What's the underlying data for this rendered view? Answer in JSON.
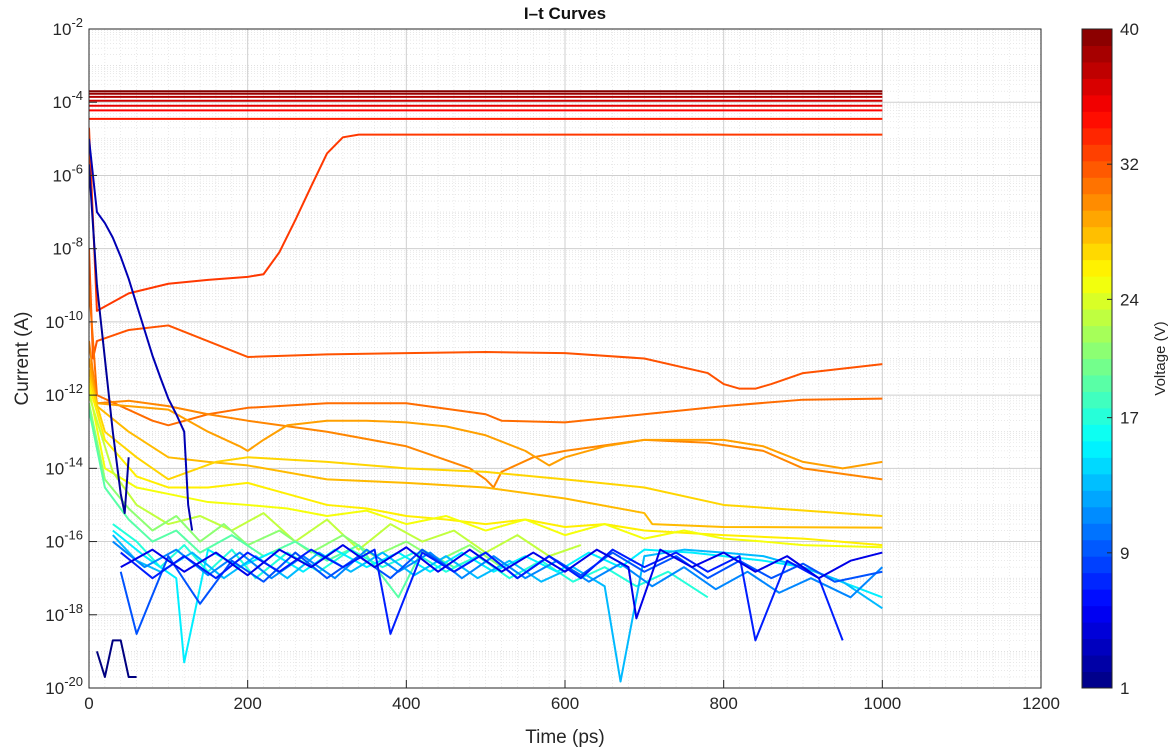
{
  "chart_data": {
    "type": "line",
    "title": "I–t Curves",
    "xlabel": "Time (ps)",
    "ylabel": "Current (A)",
    "xlim": [
      0,
      1200
    ],
    "ylim": [
      1e-20,
      0.01
    ],
    "yscale": "log",
    "grid": true,
    "minor_grid": true,
    "x_ticks": [
      0,
      200,
      400,
      600,
      800,
      1000,
      1200
    ],
    "y_tick_exponents": [
      -20,
      -18,
      -16,
      -14,
      -12,
      -10,
      -8,
      -6,
      -4,
      -2
    ],
    "colorbar": {
      "label": "Voltage (V)",
      "colormap": "jet",
      "range": [
        1,
        40
      ],
      "ticks": [
        "1",
        "9",
        "17",
        "24",
        "32",
        "40"
      ]
    },
    "series_note_voltages": [
      40,
      39,
      38,
      37,
      36,
      35,
      34,
      33,
      32,
      31,
      30,
      29,
      28,
      27,
      26,
      25,
      24,
      23,
      22,
      21,
      20,
      19,
      18,
      17,
      16,
      15,
      14,
      13,
      12,
      11,
      10,
      9,
      8,
      7,
      6,
      5,
      4,
      3,
      2,
      1
    ],
    "series": [
      {
        "voltage": 40,
        "x": [
          0,
          1000
        ],
        "y": [
          0.0002,
          0.0002
        ]
      },
      {
        "voltage": 39,
        "x": [
          0,
          1000
        ],
        "y": [
          0.00017,
          0.00017
        ]
      },
      {
        "voltage": 38,
        "x": [
          0,
          1000
        ],
        "y": [
          0.00014,
          0.00014
        ]
      },
      {
        "voltage": 37,
        "x": [
          0,
          1000
        ],
        "y": [
          0.00011,
          0.00011
        ]
      },
      {
        "voltage": 36,
        "x": [
          0,
          1000
        ],
        "y": [
          8e-05,
          8e-05
        ]
      },
      {
        "voltage": 35,
        "x": [
          0,
          1000
        ],
        "y": [
          6e-05,
          6e-05
        ]
      },
      {
        "voltage": 34,
        "x": [
          0,
          1000
        ],
        "y": [
          3.5e-05,
          3.5e-05
        ]
      },
      {
        "voltage": 33,
        "x": [
          0,
          10,
          50,
          100,
          150,
          200,
          220,
          240,
          260,
          280,
          300,
          320,
          340,
          400,
          600,
          1000
        ],
        "y": [
          2e-05,
          2e-10,
          6e-10,
          1.1e-09,
          1.4e-09,
          1.7e-09,
          2e-09,
          8e-09,
          6e-08,
          5e-07,
          4e-06,
          1.1e-05,
          1.3e-05,
          1.3e-05,
          1.3e-05,
          1.3e-05
        ]
      },
      {
        "voltage": 32,
        "x": [
          0,
          5,
          10,
          50,
          100,
          200,
          300,
          400,
          500,
          600,
          700,
          780,
          800,
          820,
          840,
          860,
          900,
          1000
        ],
        "y": [
          1e-08,
          1e-11,
          3e-11,
          6e-11,
          8e-11,
          1.1e-11,
          1.3e-11,
          1.4e-11,
          1.5e-11,
          1.4e-11,
          1e-11,
          4e-12,
          2e-12,
          1.5e-12,
          1.5e-12,
          2e-12,
          4e-12,
          7e-12
        ]
      },
      {
        "voltage": 31,
        "x": [
          0,
          10,
          40,
          80,
          100,
          150,
          200,
          300,
          400,
          500,
          520,
          600,
          700,
          800,
          900,
          1000
        ],
        "y": [
          1e-09,
          1e-12,
          5e-13,
          2e-13,
          1.5e-13,
          3e-13,
          4.5e-13,
          6e-13,
          6e-13,
          3e-13,
          2e-13,
          1.8e-13,
          3e-13,
          5e-13,
          7.5e-13,
          8e-13
        ]
      },
      {
        "voltage": 30,
        "x": [
          0,
          10,
          50,
          100,
          150,
          200,
          300,
          400,
          480,
          500,
          510,
          520,
          560,
          600,
          700,
          780,
          850,
          900,
          1000
        ],
        "y": [
          3e-11,
          6e-13,
          7e-13,
          5e-13,
          3e-13,
          2e-13,
          1e-13,
          4e-14,
          1e-14,
          5e-15,
          3e-15,
          8e-15,
          2e-14,
          3e-14,
          6e-14,
          5e-14,
          3e-14,
          1e-14,
          5e-15
        ]
      },
      {
        "voltage": 29,
        "x": [
          0,
          10,
          50,
          100,
          150,
          190,
          200,
          220,
          250,
          300,
          350,
          400,
          450,
          500,
          550,
          580,
          600,
          650,
          700,
          800,
          850,
          900,
          950,
          1000
        ],
        "y": [
          1e-11,
          6e-13,
          5e-13,
          4e-13,
          1e-13,
          4e-14,
          3e-14,
          6e-14,
          1.5e-13,
          2e-13,
          2e-13,
          1.8e-13,
          1.4e-13,
          8e-14,
          3e-14,
          1.2e-14,
          2e-14,
          4e-14,
          6e-14,
          6e-14,
          4e-14,
          1.5e-14,
          1e-14,
          1.5e-14
        ]
      },
      {
        "voltage": 28,
        "x": [
          0,
          10,
          50,
          100,
          150,
          200,
          300,
          400,
          500,
          600,
          700,
          710,
          800,
          1000
        ],
        "y": [
          5e-12,
          5e-13,
          1e-13,
          2e-14,
          1.5e-14,
          1.2e-14,
          5e-15,
          4e-15,
          3e-15,
          1.5e-15,
          6e-16,
          3e-16,
          2.5e-16,
          2.4e-16
        ]
      },
      {
        "voltage": 27,
        "x": [
          0,
          20,
          60,
          100,
          160,
          200,
          300,
          400,
          500,
          600,
          700,
          800,
          1000
        ],
        "y": [
          3e-12,
          1e-13,
          2e-14,
          5e-15,
          1.5e-14,
          2e-14,
          1.5e-14,
          1e-14,
          8e-15,
          5e-15,
          3e-15,
          1e-15,
          5e-16
        ]
      },
      {
        "voltage": 26,
        "x": [
          0,
          20,
          60,
          100,
          150,
          200,
          250,
          300,
          350,
          400,
          450,
          500,
          550,
          600,
          650,
          700,
          800,
          900,
          1000
        ],
        "y": [
          2e-12,
          6e-14,
          6e-15,
          3e-15,
          3e-15,
          4e-15,
          2e-15,
          1e-15,
          8e-16,
          5e-16,
          4e-16,
          3e-16,
          4e-16,
          2.5e-16,
          3e-16,
          2e-16,
          1.5e-16,
          1.2e-16,
          8e-17
        ]
      },
      {
        "voltage": 25,
        "x": [
          0,
          20,
          60,
          100,
          150,
          200,
          250,
          300,
          350,
          400,
          450,
          500,
          550,
          600,
          650,
          700,
          750,
          800,
          850,
          900,
          1000
        ],
        "y": [
          1.5e-12,
          1e-14,
          3e-15,
          2e-15,
          1.2e-15,
          1e-15,
          8e-16,
          5e-16,
          7e-16,
          3e-16,
          5e-16,
          2e-16,
          4e-16,
          1.5e-16,
          3e-16,
          1.2e-16,
          2e-16,
          1.2e-16,
          1e-16,
          8e-17,
          7e-17
        ]
      },
      {
        "voltage": 23,
        "x": [
          0,
          30,
          60,
          100,
          140,
          180,
          220,
          260,
          300,
          340,
          380,
          420,
          460,
          500,
          540,
          580,
          620
        ],
        "y": [
          1e-12,
          8e-15,
          1e-15,
          3e-16,
          5e-16,
          2e-16,
          6e-16,
          1e-16,
          4e-16,
          6e-17,
          3e-16,
          1e-16,
          2e-16,
          5e-17,
          1.5e-16,
          4e-17,
          8e-17
        ]
      },
      {
        "voltage": 21,
        "x": [
          0,
          20,
          50,
          80,
          110,
          140,
          170,
          200,
          240,
          280,
          320,
          360,
          400,
          440,
          480,
          520
        ],
        "y": [
          6e-13,
          5e-15,
          8e-16,
          2e-16,
          5e-16,
          1e-16,
          3e-16,
          8e-17,
          2e-16,
          5e-17,
          1.5e-16,
          4e-17,
          1e-16,
          3e-17,
          8e-17,
          2e-17
        ]
      },
      {
        "voltage": 19,
        "x": [
          0,
          20,
          50,
          80,
          110,
          140,
          180,
          220,
          260,
          300,
          340,
          390,
          420,
          460,
          500
        ],
        "y": [
          4e-13,
          3e-15,
          4e-16,
          1e-16,
          2e-16,
          5e-17,
          1.5e-16,
          4e-17,
          1e-16,
          3e-17,
          8e-17,
          3e-18,
          6e-17,
          2e-17,
          5e-17
        ]
      },
      {
        "voltage": 17,
        "x": [
          30,
          60,
          90,
          120,
          150,
          180,
          210,
          250,
          290,
          330,
          370,
          410,
          450,
          490,
          530,
          570,
          610,
          650,
          690,
          730,
          780
        ],
        "y": [
          3e-16,
          1e-16,
          2e-17,
          8e-17,
          1.5e-17,
          6e-17,
          1e-17,
          5e-17,
          1.5e-17,
          6e-17,
          2e-17,
          5e-17,
          1.5e-17,
          4e-17,
          1e-17,
          3e-17,
          8e-18,
          2e-17,
          6e-18,
          1.5e-17,
          3e-18
        ]
      },
      {
        "voltage": 15,
        "x": [
          30,
          70,
          110,
          120,
          150,
          190,
          230,
          270,
          310,
          350,
          390,
          430,
          470,
          510,
          550,
          590,
          630,
          670,
          700,
          760,
          800,
          850,
          900,
          1000
        ],
        "y": [
          2e-16,
          4e-17,
          1e-17,
          5e-20,
          6e-17,
          2e-17,
          5e-17,
          1.5e-17,
          6e-17,
          2e-17,
          5e-17,
          1.5e-17,
          5e-17,
          1.5e-17,
          4e-17,
          1.5e-17,
          5e-17,
          2e-17,
          6e-17,
          5e-17,
          4e-17,
          3e-17,
          2e-17,
          3e-18
        ]
      },
      {
        "voltage": 13,
        "x": [
          30,
          60,
          90,
          130,
          170,
          210,
          250,
          290,
          330,
          370,
          410,
          450,
          490,
          530,
          570,
          610,
          650,
          670,
          700,
          750,
          800,
          850,
          900,
          950,
          1000
        ],
        "y": [
          1.5e-16,
          3e-17,
          1.5e-17,
          5e-17,
          1e-17,
          4e-17,
          1e-17,
          5e-17,
          1.5e-17,
          5e-17,
          1.2e-17,
          4e-17,
          1e-17,
          3e-17,
          8e-18,
          2e-17,
          6e-18,
          1.5e-20,
          4e-17,
          6e-17,
          5e-17,
          4e-17,
          2e-17,
          8e-18,
          1.5e-18
        ]
      },
      {
        "voltage": 11,
        "x": [
          30,
          70,
          110,
          150,
          190,
          230,
          270,
          310,
          350,
          390,
          430,
          470,
          510,
          550,
          590,
          630,
          670,
          710,
          750,
          790,
          830,
          870,
          910,
          960,
          1000
        ],
        "y": [
          1e-16,
          2e-17,
          6e-17,
          1.2e-17,
          5e-17,
          1e-17,
          4e-17,
          1e-17,
          6e-17,
          1.5e-17,
          5e-17,
          1e-17,
          4e-17,
          1e-17,
          3e-17,
          8e-18,
          2.5e-17,
          6e-18,
          2e-17,
          5e-18,
          1.5e-17,
          4e-18,
          1e-17,
          3e-18,
          2e-17
        ]
      },
      {
        "voltage": 9,
        "x": [
          40,
          60,
          100,
          140,
          180,
          220,
          260,
          300,
          340,
          380,
          420,
          460,
          500,
          540,
          580,
          620,
          660,
          700,
          740,
          780,
          820,
          860,
          900,
          940,
          1000
        ],
        "y": [
          1.5e-17,
          3e-19,
          4e-17,
          2e-18,
          3e-17,
          8e-18,
          5e-17,
          1e-17,
          4e-17,
          1e-17,
          6e-17,
          1.5e-17,
          5e-17,
          1e-17,
          4e-17,
          1.2e-17,
          5e-17,
          1.5e-17,
          4e-17,
          1e-17,
          3e-17,
          1e-17,
          2.5e-17,
          8e-18,
          1.5e-17
        ]
      },
      {
        "voltage": 7,
        "x": [
          40,
          80,
          120,
          160,
          200,
          240,
          280,
          320,
          360,
          380,
          420,
          460,
          500,
          540,
          580,
          620,
          660,
          700,
          740,
          780,
          820,
          840,
          880,
          920,
          950
        ],
        "y": [
          5e-17,
          1e-17,
          4e-17,
          1e-17,
          5e-17,
          1.5e-17,
          6e-17,
          2e-17,
          6e-17,
          3e-19,
          5e-17,
          1.5e-17,
          5e-17,
          1e-17,
          4e-17,
          1e-17,
          6e-17,
          2e-17,
          5e-17,
          1.5e-17,
          4e-17,
          2e-19,
          3e-17,
          1e-17,
          2e-19
        ]
      },
      {
        "voltage": 5,
        "x": [
          40,
          80,
          120,
          160,
          200,
          240,
          280,
          320,
          360,
          400,
          440,
          480,
          520,
          560,
          600,
          640,
          680,
          690,
          720,
          760,
          800,
          840,
          880,
          920,
          960,
          1000
        ],
        "y": [
          2e-17,
          6e-17,
          1.5e-17,
          5e-17,
          1.2e-17,
          6e-17,
          2e-17,
          8e-17,
          2e-17,
          7e-17,
          1.5e-17,
          6e-17,
          1.5e-17,
          5e-17,
          1.5e-17,
          6e-17,
          2e-17,
          8e-19,
          6e-17,
          2e-17,
          5e-17,
          1.5e-17,
          4e-17,
          1e-17,
          3e-17,
          5e-17
        ]
      },
      {
        "voltage": 3,
        "x": [
          0,
          5,
          10,
          20,
          30,
          40,
          50,
          60,
          70,
          80,
          90,
          100,
          110,
          120,
          125,
          130
        ],
        "y": [
          1e-05,
          1e-06,
          1e-07,
          5e-08,
          2e-08,
          6e-09,
          1.5e-09,
          3e-10,
          6e-11,
          1.2e-11,
          3e-12,
          8e-13,
          3e-13,
          1e-13,
          1e-15,
          2e-16
        ]
      },
      {
        "voltage": 2,
        "x": [
          0,
          10,
          20,
          30,
          40,
          45,
          50
        ],
        "y": [
          2e-06,
          1e-09,
          1e-11,
          1e-13,
          2e-15,
          6e-16,
          2e-14
        ]
      },
      {
        "voltage": 1,
        "x": [
          10,
          20,
          30,
          40,
          50,
          60
        ],
        "y": [
          1e-19,
          2e-20,
          2e-19,
          2e-19,
          2e-20,
          2e-20
        ]
      }
    ]
  }
}
